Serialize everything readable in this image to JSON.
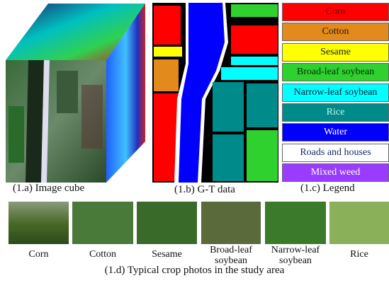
{
  "panels": {
    "cube_caption": "(1.a) Image cube",
    "gt_caption": "(1.b) G-T data",
    "legend_caption": "(1.c) Legend"
  },
  "legend": [
    {
      "name": "Corn",
      "color": "#ff0000",
      "text_color": "#7a0000"
    },
    {
      "name": "Cotton",
      "color": "#e38a1c",
      "text_color": "#1a1a1a"
    },
    {
      "name": "Sesame",
      "color": "#ffff00",
      "text_color": "#1a1a1a"
    },
    {
      "name": "Broad-leaf soybean",
      "color": "#2fd12f",
      "text_color": "#0a2a0a"
    },
    {
      "name": "Narrow-leaf soybean",
      "color": "#00ffff",
      "text_color": "#0a1a3a"
    },
    {
      "name": "Rice",
      "color": "#008b8b",
      "text_color": "#d0f0f0"
    },
    {
      "name": "Water",
      "color": "#0000ff",
      "text_color": "#ffffff"
    },
    {
      "name": "Roads and houses",
      "color": "#ffffff",
      "text_color": "#102a66"
    },
    {
      "name": "Mixed weed",
      "color": "#9a3cff",
      "text_color": "#ffffff"
    }
  ],
  "photos": {
    "labels": [
      "Corn",
      "Cotton",
      "Sesame",
      "Broad-leaf soybean",
      "Narrow-leaf soybean",
      "Rice"
    ],
    "caption": "(1.d) Typical crop photos in the study area"
  }
}
